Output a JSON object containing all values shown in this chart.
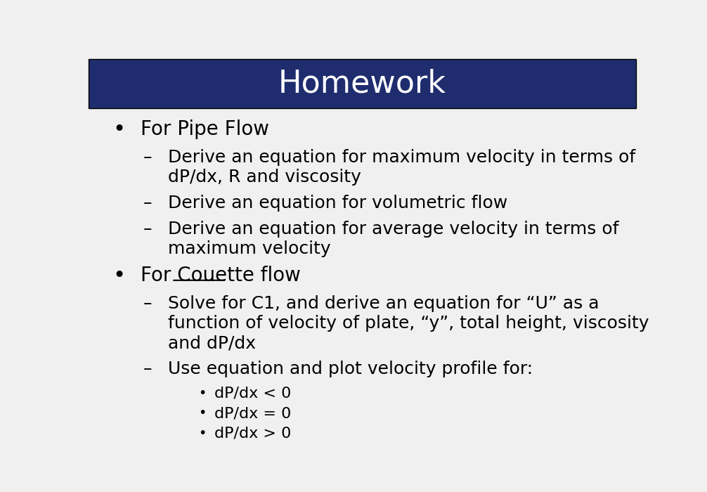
{
  "title": "Homework",
  "title_bg_color": "#1f2d6e",
  "title_text_color": "#ffffff",
  "body_bg_color": "#f0f0f0",
  "bullet_color": "#000000",
  "title_fontsize": 32,
  "body_fontsize": 20,
  "sub_fontsize": 18,
  "subsub_fontsize": 16,
  "content": [
    {
      "level": 1,
      "text": "For Pipe Flow",
      "underline": []
    },
    {
      "level": 2,
      "text": "Derive an equation for maximum velocity in terms of\ndP/dx, R and viscosity",
      "underline": [
        "dP"
      ]
    },
    {
      "level": 2,
      "text": "Derive an equation for volumetric flow",
      "underline": []
    },
    {
      "level": 2,
      "text": "Derive an equation for average velocity in terms of\nmaximum velocity",
      "underline": []
    },
    {
      "level": 1,
      "text": "For Couette flow",
      "underline": [
        "Couette"
      ]
    },
    {
      "level": 2,
      "text": "Solve for C1, and derive an equation for “U” as a\nfunction of velocity of plate, “y”, total height, viscosity\nand dP/dx",
      "underline": [
        "dP"
      ]
    },
    {
      "level": 2,
      "text": "Use equation and plot velocity profile for:",
      "underline": []
    },
    {
      "level": 3,
      "text": "dP/dx < 0",
      "underline": [
        "dP"
      ]
    },
    {
      "level": 3,
      "text": "dP/dx = 0",
      "underline": [
        "dP"
      ]
    },
    {
      "level": 3,
      "text": "dP/dx > 0",
      "underline": [
        "dP"
      ]
    }
  ]
}
